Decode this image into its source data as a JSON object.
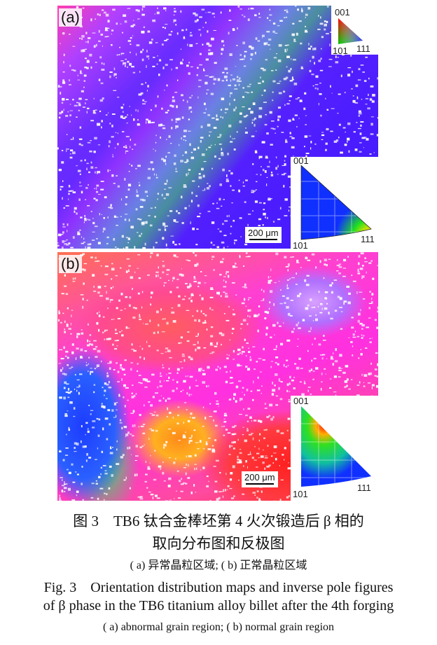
{
  "figure": {
    "panel_a": {
      "label": "(a)",
      "scale_bar": "200 μm",
      "color_key": {
        "top": "001",
        "left": "101",
        "right": "111"
      },
      "ipf": {
        "top": "001",
        "left": "101",
        "right": "111",
        "max_near": "111"
      }
    },
    "panel_b": {
      "label": "(b)",
      "scale_bar": "200 μm",
      "ipf": {
        "top": "001",
        "left": "101",
        "right": "111",
        "max_near": "001"
      }
    },
    "colors": {
      "blue": "#1e2cff",
      "green": "#2ee02e",
      "red": "#ff1a1a",
      "magenta": "#ff30e0",
      "violet": "#5a22ff"
    }
  },
  "caption": {
    "cn_line1": "图 3　TB6 钛合金棒坯第 4 火次锻造后 β 相的",
    "cn_line2": "取向分布图和反极图",
    "cn_sub": "( a) 异常晶粒区域; ( b) 正常晶粒区域",
    "en_line1": "Fig. 3　Orientation distribution maps and inverse pole figures",
    "en_line2": "of β phase in the TB6 titanium alloy billet after the 4th forging",
    "en_sub": "( a)  abnormal grain region;  ( b)  normal grain region"
  }
}
